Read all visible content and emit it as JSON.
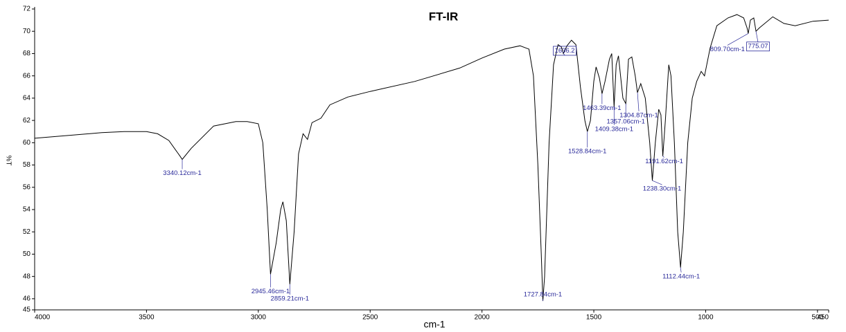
{
  "chart_data": {
    "type": "line",
    "title": "FT-IR",
    "x_label": "cm-1",
    "y_label": "%T",
    "color": "#000000",
    "annotation_color": "#2a2a9a",
    "xlim": [
      4000,
      450
    ],
    "ylim": [
      45,
      72
    ],
    "xticks": [
      4000,
      3500,
      3000,
      2500,
      2000,
      1500,
      1000,
      500,
      450
    ],
    "yticks": [
      45,
      46,
      48,
      50,
      52,
      54,
      56,
      58,
      60,
      62,
      64,
      66,
      68,
      70,
      72
    ],
    "x": [
      4000,
      3700,
      3600,
      3500,
      3450,
      3400,
      3350,
      3340.12,
      3300,
      3200,
      3100,
      3050,
      3000,
      2980,
      2960,
      2945.46,
      2920,
      2900,
      2890,
      2875,
      2859.21,
      2840,
      2820,
      2800,
      2780,
      2760,
      2720,
      2680,
      2600,
      2500,
      2300,
      2100,
      2000,
      1900,
      1830,
      1790,
      1770,
      1750,
      1735,
      1727.84,
      1720,
      1700,
      1680,
      1660,
      1645,
      1636.2,
      1620,
      1600,
      1580,
      1560,
      1540,
      1528.84,
      1515,
      1500,
      1490,
      1475,
      1463.39,
      1450,
      1430,
      1420,
      1409.38,
      1400,
      1390,
      1370,
      1357.06,
      1345,
      1330,
      1315,
      1304.87,
      1290,
      1270,
      1250,
      1238.3,
      1225,
      1210,
      1200,
      1191.62,
      1180,
      1165,
      1155,
      1140,
      1125,
      1112.44,
      1100,
      1080,
      1060,
      1040,
      1020,
      1005,
      980,
      950,
      900,
      860,
      830,
      815,
      809.7,
      800,
      785,
      775.07,
      760,
      700,
      650,
      600,
      520,
      450
    ],
    "values": [
      60.4,
      60.9,
      61.0,
      61.0,
      60.8,
      60.2,
      58.8,
      58.5,
      59.5,
      61.5,
      61.9,
      61.9,
      61.7,
      60,
      54,
      48.2,
      51,
      54,
      54.7,
      53,
      47.3,
      52,
      59,
      60.8,
      60.3,
      61.8,
      62.2,
      63.4,
      64.1,
      64.6,
      65.5,
      66.7,
      67.6,
      68.4,
      68.7,
      68.4,
      66,
      58,
      50,
      45.8,
      48,
      60,
      67,
      68.8,
      68.6,
      68.0,
      68.7,
      69.2,
      68.8,
      65,
      62,
      61,
      62,
      65.5,
      66.8,
      65.8,
      64.4,
      65.5,
      67.5,
      68,
      63.2,
      67,
      67.8,
      64,
      63.5,
      67.5,
      67.7,
      66,
      64.5,
      65.3,
      64,
      60,
      56.6,
      60,
      63,
      62.5,
      58.8,
      62,
      67,
      66,
      60,
      52,
      48.8,
      52,
      60,
      64,
      65.5,
      66.4,
      66,
      68.5,
      70.5,
      71.2,
      71.5,
      71.2,
      70.3,
      69.8,
      71,
      71.2,
      70,
      70.3,
      71.3,
      70.7,
      70.5,
      70.9,
      71
    ],
    "annotations": [
      {
        "text": "3340.12cm-1",
        "x": 3340.12,
        "y": 58.5
      },
      {
        "text": "2945.46cm-1",
        "x": 2945.46,
        "y": 48.2
      },
      {
        "text": "2859.21cm-1",
        "x": 2859.21,
        "y": 47.3
      },
      {
        "text": "1727.84cm-1",
        "x": 1727.84,
        "y": 45.8
      },
      {
        "text": "1636.2",
        "x": 1636.2,
        "y": 68.0,
        "boxed": true
      },
      {
        "text": "1528.84cm-1",
        "x": 1528.84,
        "y": 61
      },
      {
        "text": "1463.39cm-1",
        "x": 1463.39,
        "y": 64.4
      },
      {
        "text": "1409.38cm-1",
        "x": 1409.38,
        "y": 63.2
      },
      {
        "text": "1357.06cm-1",
        "x": 1357.06,
        "y": 63.5
      },
      {
        "text": "1304.87cm-1",
        "x": 1304.87,
        "y": 64.5
      },
      {
        "text": "1238.30cm-1",
        "x": 1238.3,
        "y": 56.6
      },
      {
        "text": "1191.62cm-1",
        "x": 1191.62,
        "y": 58.8
      },
      {
        "text": "1112.44cm-1",
        "x": 1112.44,
        "y": 48.8
      },
      {
        "text": "809.70cm-1",
        "x": 809.7,
        "y": 69.8
      },
      {
        "text": "775.07",
        "x": 775.07,
        "y": 70,
        "boxed": true
      }
    ]
  }
}
